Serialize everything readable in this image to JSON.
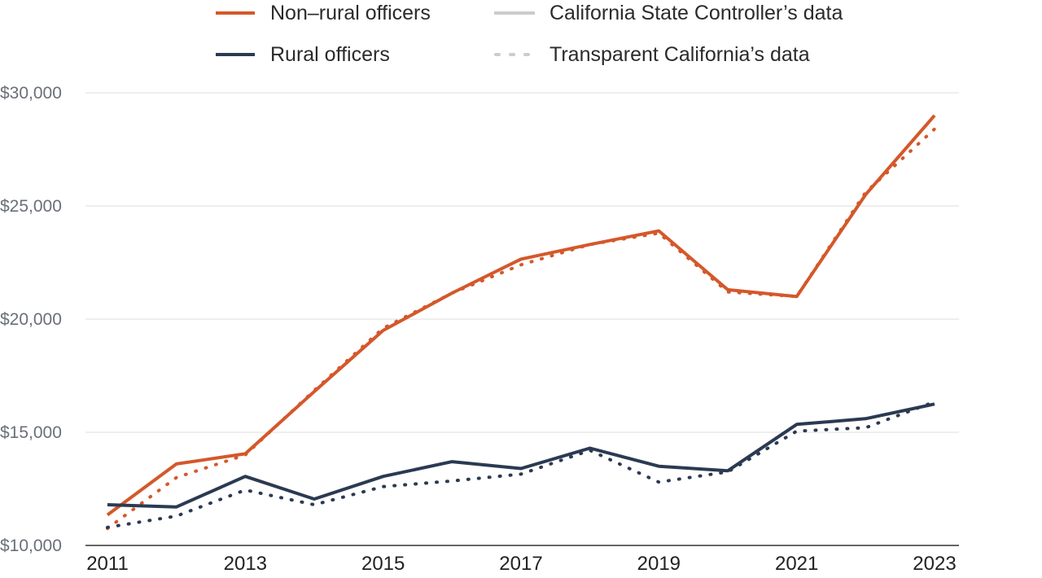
{
  "chart_data": {
    "type": "line",
    "x": [
      2011,
      2012,
      2013,
      2014,
      2015,
      2016,
      2017,
      2018,
      2019,
      2020,
      2021,
      2022,
      2023
    ],
    "x_tick_labels": [
      "2011",
      "2013",
      "2015",
      "2017",
      "2019",
      "2021",
      "2023"
    ],
    "ylim": [
      10000,
      30000
    ],
    "y_ticks": [
      10000,
      15000,
      20000,
      25000,
      30000
    ],
    "y_tick_labels": [
      "$10,000",
      "$15,000",
      "$20,000",
      "$25,000",
      "$30,000"
    ],
    "grid": true,
    "series": [
      {
        "name": "Non–rural officers",
        "source": "California State Controller’s data",
        "color": "#d4582a",
        "style": "solid",
        "values": [
          11350,
          13600,
          14050,
          16800,
          19500,
          21150,
          22650,
          23300,
          23900,
          21300,
          21000,
          25500,
          29000
        ]
      },
      {
        "name": "Non–rural officers",
        "source": "Transparent California’s data",
        "color": "#d4582a",
        "style": "dotted",
        "values": [
          10750,
          13000,
          14000,
          16850,
          19600,
          21150,
          22400,
          23300,
          23800,
          21200,
          21000,
          25600,
          28400
        ]
      },
      {
        "name": "Rural officers",
        "source": "California State Controller’s data",
        "color": "#2b3a52",
        "style": "solid",
        "values": [
          11800,
          11700,
          13050,
          12050,
          13050,
          13700,
          13400,
          14300,
          13500,
          13300,
          15350,
          15600,
          16250
        ]
      },
      {
        "name": "Rural officers",
        "source": "Transparent California’s data",
        "color": "#2b3a52",
        "style": "dotted",
        "values": [
          10800,
          11300,
          12450,
          11800,
          12600,
          12850,
          13150,
          14200,
          12800,
          13250,
          15050,
          15200,
          16350
        ]
      }
    ]
  },
  "legend": {
    "items": [
      {
        "label": "Non–rural officers",
        "color": "#d4582a",
        "style": "solid"
      },
      {
        "label": "California State Controller’s data",
        "color": "#cccccc",
        "style": "solid"
      },
      {
        "label": "Rural officers",
        "color": "#2b3a52",
        "style": "solid"
      },
      {
        "label": "Transparent California’s data",
        "color": "#cccccc",
        "style": "dotted"
      }
    ]
  }
}
